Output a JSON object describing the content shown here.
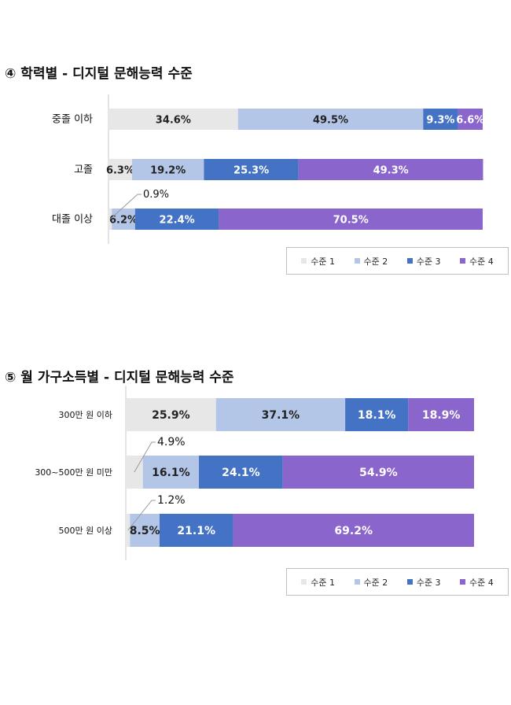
{
  "colors": {
    "level1": "#e7e7e7",
    "level2": "#b4c6e7",
    "level3": "#4472c4",
    "level4": "#8a65cc"
  },
  "charts": [
    {
      "title": "④ 학력별 - 디지털 문해능력 수준",
      "legend": [
        "수준 1",
        "수준 2",
        "수준 3",
        "수준 4"
      ]
    },
    {
      "title": "⑤ 월 가구소득별 - 디지털 문해능력 수준",
      "legend": [
        "수준 1",
        "수준 2",
        "수준 3",
        "수준 4"
      ]
    }
  ],
  "chart_data": [
    {
      "type": "bar",
      "orientation": "horizontal",
      "stacked": true,
      "title": "④ 학력별 - 디지털 문해능력 수준",
      "categories": [
        "중졸 이하",
        "고졸",
        "대졸 이상"
      ],
      "series": [
        {
          "name": "수준 1",
          "values": [
            34.6,
            6.3,
            0.9
          ],
          "labels": [
            "34.6%",
            "6.3%",
            "0.9%"
          ]
        },
        {
          "name": "수준 2",
          "values": [
            49.5,
            19.2,
            6.2
          ],
          "labels": [
            "49.5%",
            "19.2%",
            "6.2%"
          ]
        },
        {
          "name": "수준 3",
          "values": [
            9.3,
            25.3,
            22.4
          ],
          "labels": [
            "9.3%",
            "25.3%",
            "22.4%"
          ]
        },
        {
          "name": "수준 4",
          "values": [
            6.6,
            49.3,
            70.5
          ],
          "labels": [
            "6.6%",
            "49.3%",
            "70.5%"
          ]
        }
      ],
      "xlim": [
        0,
        100
      ],
      "legend_position": "bottom-right"
    },
    {
      "type": "bar",
      "orientation": "horizontal",
      "stacked": true,
      "title": "⑤ 월 가구소득별 - 디지털 문해능력 수준",
      "categories": [
        "300만 원 이하",
        "300~500만 원 미만",
        "500만 원 이상"
      ],
      "series": [
        {
          "name": "수준 1",
          "values": [
            25.9,
            4.9,
            1.2
          ],
          "labels": [
            "25.9%",
            "4.9%",
            "1.2%"
          ]
        },
        {
          "name": "수준 2",
          "values": [
            37.1,
            16.1,
            8.5
          ],
          "labels": [
            "37.1%",
            "16.1%",
            "8.5%"
          ]
        },
        {
          "name": "수준 3",
          "values": [
            18.1,
            24.1,
            21.1
          ],
          "labels": [
            "18.1%",
            "24.1%",
            "21.1%"
          ]
        },
        {
          "name": "수준 4",
          "values": [
            18.9,
            54.9,
            69.2
          ],
          "labels": [
            "18.9%",
            "54.9%",
            "69.2%"
          ]
        }
      ],
      "xlim": [
        0,
        100
      ],
      "legend_position": "bottom-right"
    }
  ]
}
